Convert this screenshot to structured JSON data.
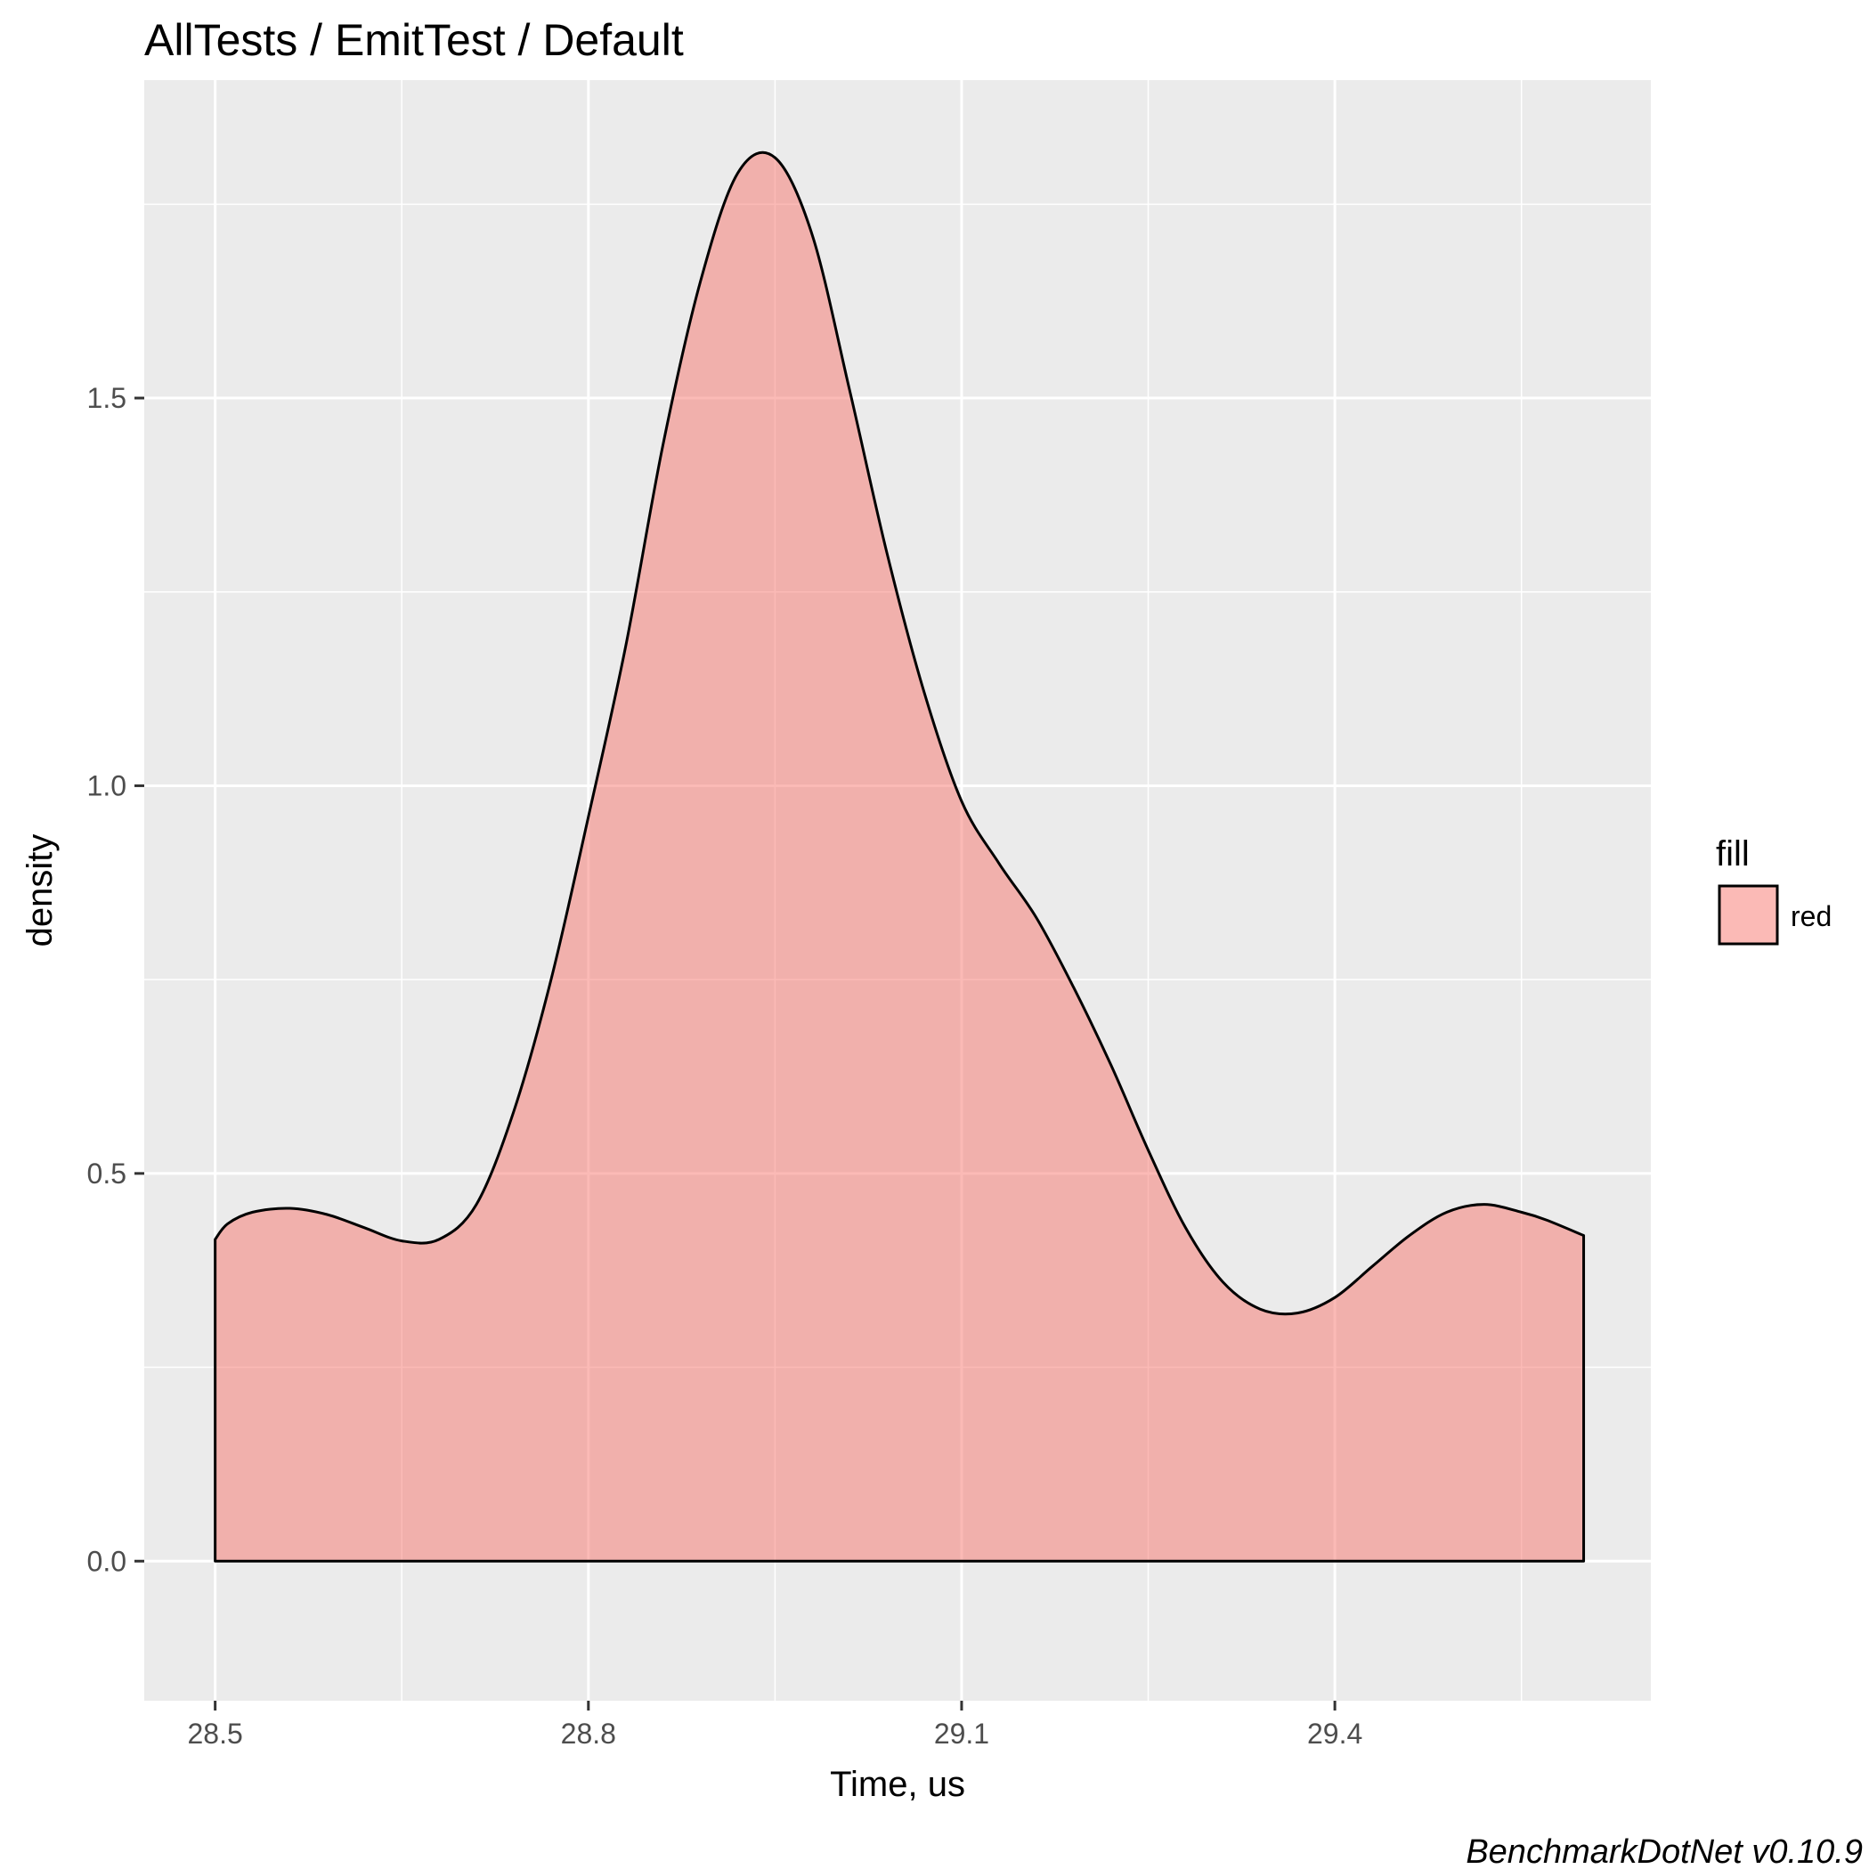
{
  "chart_data": {
    "type": "area",
    "title": "AllTests / EmitTest / Default",
    "xlabel": "Time, us",
    "ylabel": "density",
    "caption": "BenchmarkDotNet v0.10.9",
    "xlim": [
      28.443,
      29.654
    ],
    "ylim": [
      -0.18,
      1.91
    ],
    "x_ticks": [
      28.5,
      28.8,
      29.1,
      29.4
    ],
    "x_tick_labels": [
      "28.5",
      "28.8",
      "29.1",
      "29.4"
    ],
    "x_minor": [
      28.65,
      28.95,
      29.25,
      29.55
    ],
    "y_ticks": [
      0.0,
      0.5,
      1.0,
      1.5
    ],
    "y_tick_labels": [
      "0.0",
      "0.5",
      "1.0",
      "1.5"
    ],
    "y_minor": [
      0.25,
      0.75,
      1.25,
      1.75
    ],
    "grid": true,
    "series": [
      {
        "name": "red",
        "x": [
          28.5,
          28.51,
          28.53,
          28.56,
          28.59,
          28.62,
          28.65,
          28.68,
          28.71,
          28.74,
          28.77,
          28.8,
          28.83,
          28.86,
          28.89,
          28.92,
          28.95,
          28.98,
          29.01,
          29.04,
          29.07,
          29.1,
          29.13,
          29.16,
          29.19,
          29.22,
          29.25,
          29.28,
          29.31,
          29.34,
          29.37,
          29.4,
          29.43,
          29.46,
          29.49,
          29.52,
          29.55,
          29.57,
          29.6
        ],
        "values": [
          0.415,
          0.435,
          0.45,
          0.455,
          0.447,
          0.43,
          0.413,
          0.415,
          0.46,
          0.58,
          0.75,
          0.96,
          1.18,
          1.44,
          1.65,
          1.79,
          1.81,
          1.71,
          1.51,
          1.3,
          1.12,
          0.98,
          0.9,
          0.83,
          0.74,
          0.64,
          0.53,
          0.43,
          0.36,
          0.325,
          0.32,
          0.34,
          0.38,
          0.42,
          0.45,
          0.46,
          0.45,
          0.44,
          0.42
        ]
      }
    ],
    "legend": {
      "title": "fill",
      "items": [
        {
          "label": "red",
          "color": "#F8766D"
        }
      ],
      "position": "right"
    },
    "colors": {
      "panel_bg": "#EBEBEB",
      "grid": "#FFFFFF",
      "fill": "#F8766D",
      "outline": "#000000"
    }
  }
}
